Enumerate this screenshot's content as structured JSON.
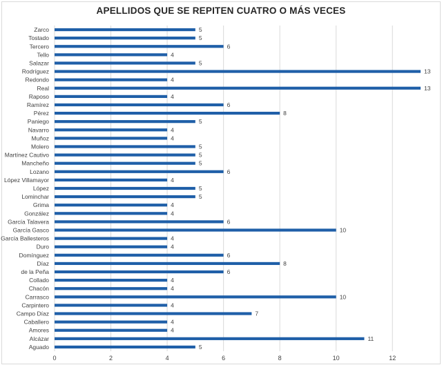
{
  "chart_data": {
    "type": "bar",
    "orientation": "horizontal",
    "title": "APELLIDOS QUE SE REPITEN CUATRO O MÁS VECES",
    "xlabel": "",
    "ylabel": "",
    "xlim": [
      0,
      13
    ],
    "x_ticks": [
      "0",
      "2",
      "4",
      "6",
      "8",
      "10",
      "12"
    ],
    "grid": "vertical",
    "legend": "none",
    "data_labels": true,
    "bar_color": "#1f5fa8",
    "categories": [
      "Zarco",
      "Tostado",
      "Tercero",
      "Tello",
      "Salazar",
      "Rodríguez",
      "Redondo",
      "Real",
      "Raposo",
      "Ramírez",
      "Pérez",
      "Paniego",
      "Navarro",
      "Muñoz",
      "Molero",
      "Martínez Cautivo",
      "Mancheño",
      "Lozano",
      "López Villamayor",
      "López",
      "Lominchar",
      "Grima",
      "González",
      "García Talavera",
      "García Gasco",
      "García Ballesteros",
      "Duro",
      "Domínguez",
      "Díaz",
      "de la Peña",
      "Collado",
      "Chacón",
      "Carrasco",
      "Carpintero",
      "Campo Díaz",
      "Caballero",
      "Amores",
      "Alcázar",
      "Aguado"
    ],
    "values": [
      5,
      5,
      6,
      4,
      5,
      13,
      4,
      13,
      4,
      6,
      8,
      5,
      4,
      4,
      5,
      5,
      5,
      6,
      4,
      5,
      5,
      4,
      4,
      6,
      10,
      4,
      4,
      6,
      8,
      6,
      4,
      4,
      10,
      4,
      7,
      4,
      4,
      11,
      5
    ]
  }
}
